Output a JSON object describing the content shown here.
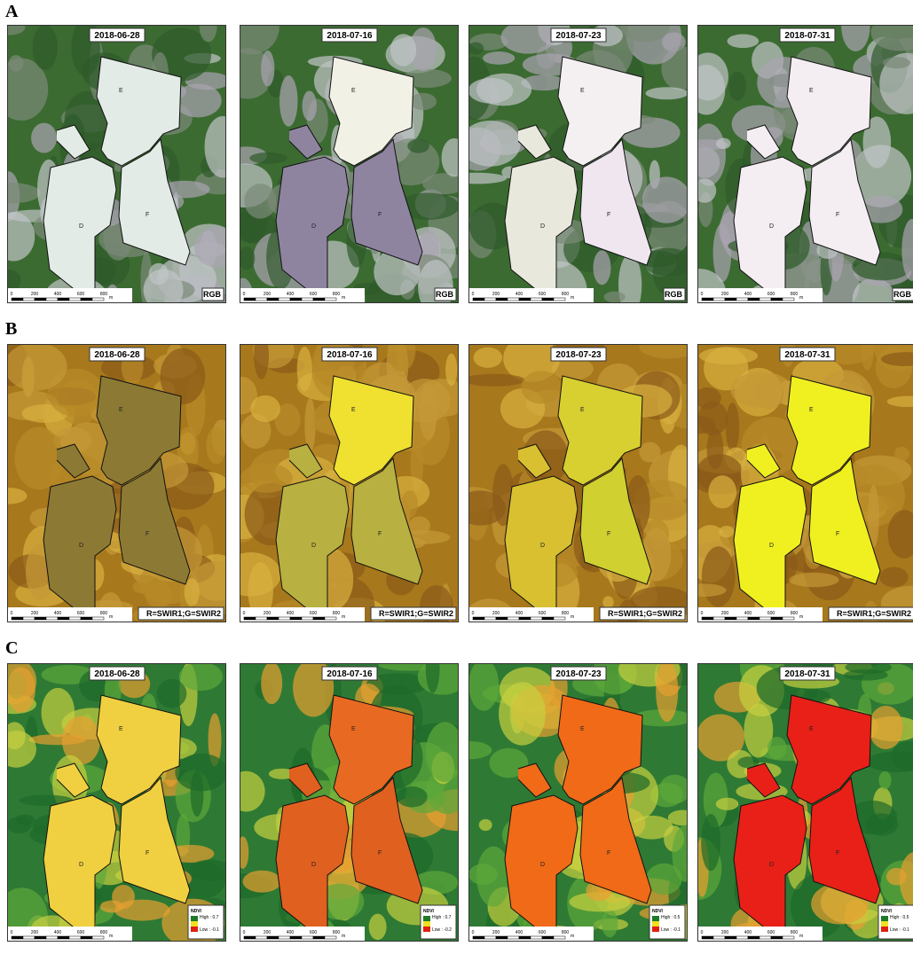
{
  "rows": [
    {
      "label": "A",
      "panels": [
        {
          "date": "2018-06-28",
          "band": "RGB"
        },
        {
          "date": "2018-07-16",
          "band": "RGB"
        },
        {
          "date": "2018-07-23",
          "band": "RGB"
        },
        {
          "date": "2018-07-31",
          "band": "RGB"
        }
      ]
    },
    {
      "label": "B",
      "panels": [
        {
          "date": "2018-06-28",
          "band": "R=SWIR1;G=SWIR2"
        },
        {
          "date": "2018-07-16",
          "band": "R=SWIR1;G=SWIR2"
        },
        {
          "date": "2018-07-23",
          "band": "R=SWIR1;G=SWIR2"
        },
        {
          "date": "2018-07-31",
          "band": "R=SWIR1;G=SWIR2"
        }
      ]
    },
    {
      "label": "C",
      "panels": [
        {
          "date": "2018-06-28",
          "legend": {
            "title": "NDVI",
            "high": "High : 0.7",
            "low": "Low : -0.1"
          }
        },
        {
          "date": "2018-07-16",
          "legend": {
            "title": "NDVI",
            "high": "High : 0.7",
            "low": "Low : -0.2"
          }
        },
        {
          "date": "2018-07-23",
          "legend": {
            "title": "NDVI",
            "high": "High : 0.5",
            "low": "Low : -0.1"
          }
        },
        {
          "date": "2018-07-31",
          "legend": {
            "title": "NDVI",
            "high": "High : 0.5",
            "low": "Low : -0.1"
          }
        }
      ]
    }
  ],
  "fields": [
    "D",
    "E",
    "F"
  ],
  "scale_bar": {
    "ticks": [
      "0",
      "200",
      "400",
      "600",
      "800"
    ],
    "unit": "m"
  }
}
